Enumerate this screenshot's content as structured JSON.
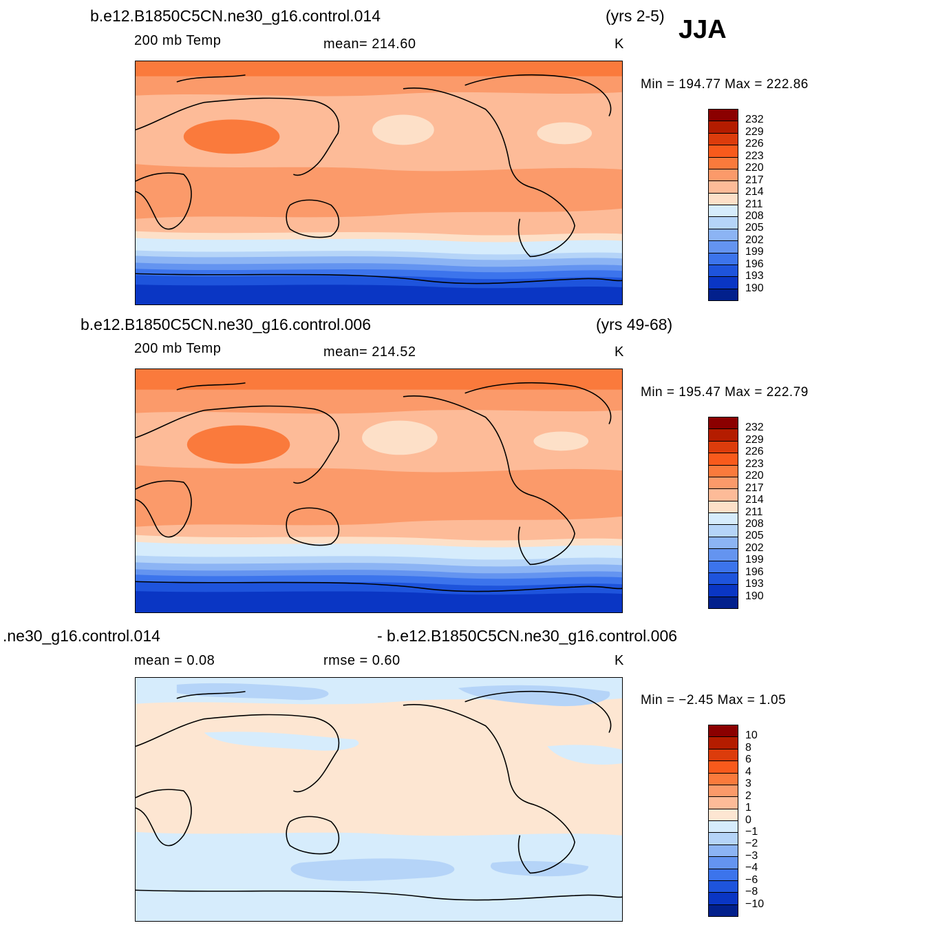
{
  "header": {
    "season": "JJA"
  },
  "panels": [
    {
      "case_label": "b.e12.B1850C5CN.ne30_g16.control.014",
      "years": "(yrs 2-5)",
      "left_label": "200 mb Temp",
      "center_label": "mean=  214.60",
      "units": "K",
      "minmax": "Min  =  194.77  Max  =  222.86",
      "colorbar": {
        "labels": [
          "232",
          "229",
          "226",
          "223",
          "220",
          "217",
          "214",
          "211",
          "208",
          "205",
          "202",
          "199",
          "196",
          "193",
          "190"
        ],
        "colors": [
          "#8b0000",
          "#b41c00",
          "#dc3c0c",
          "#f85a1c",
          "#fa7a3c",
          "#fb9a6a",
          "#fdbb98",
          "#fde0c8",
          "#d6ecfc",
          "#b5d4f8",
          "#8cb4f4",
          "#6494f0",
          "#3c74ec",
          "#1e54dc",
          "#0a36c4",
          "#02208c"
        ]
      }
    },
    {
      "case_label": "b.e12.B1850C5CN.ne30_g16.control.006",
      "years": "(yrs 49-68)",
      "left_label": "200 mb Temp",
      "center_label": "mean=  214.52",
      "units": "K",
      "minmax": "Min  =  195.47  Max  =  222.79",
      "colorbar": {
        "labels": [
          "232",
          "229",
          "226",
          "223",
          "220",
          "217",
          "214",
          "211",
          "208",
          "205",
          "202",
          "199",
          "196",
          "193",
          "190"
        ],
        "colors": [
          "#8b0000",
          "#b41c00",
          "#dc3c0c",
          "#f85a1c",
          "#fa7a3c",
          "#fb9a6a",
          "#fdbb98",
          "#fde0c8",
          "#d6ecfc",
          "#b5d4f8",
          "#8cb4f4",
          "#6494f0",
          "#3c74ec",
          "#1e54dc",
          "#0a36c4",
          "#02208c"
        ]
      }
    },
    {
      "case_label": ".ne30_g16.control.014",
      "case_label_right": "- b.e12.B1850C5CN.ne30_g16.control.006",
      "left_label": "mean  =     0.08",
      "center_label": "rmse  =     0.60",
      "units": "K",
      "minmax": "Min  =   −2.45  Max  =       1.05",
      "colorbar": {
        "labels": [
          "10",
          "8",
          "6",
          "4",
          "3",
          "2",
          "1",
          "0",
          "−1",
          "−2",
          "−3",
          "−4",
          "−6",
          "−8",
          "−10"
        ],
        "colors": [
          "#8b0000",
          "#b41c00",
          "#dc3c0c",
          "#f85a1c",
          "#fa7a3c",
          "#fb9a6a",
          "#fdbb98",
          "#fde6d2",
          "#d6ecfc",
          "#b5d4f8",
          "#8cb4f4",
          "#6494f0",
          "#3c74ec",
          "#1e54dc",
          "#0a36c4",
          "#02208c"
        ]
      }
    }
  ]
}
